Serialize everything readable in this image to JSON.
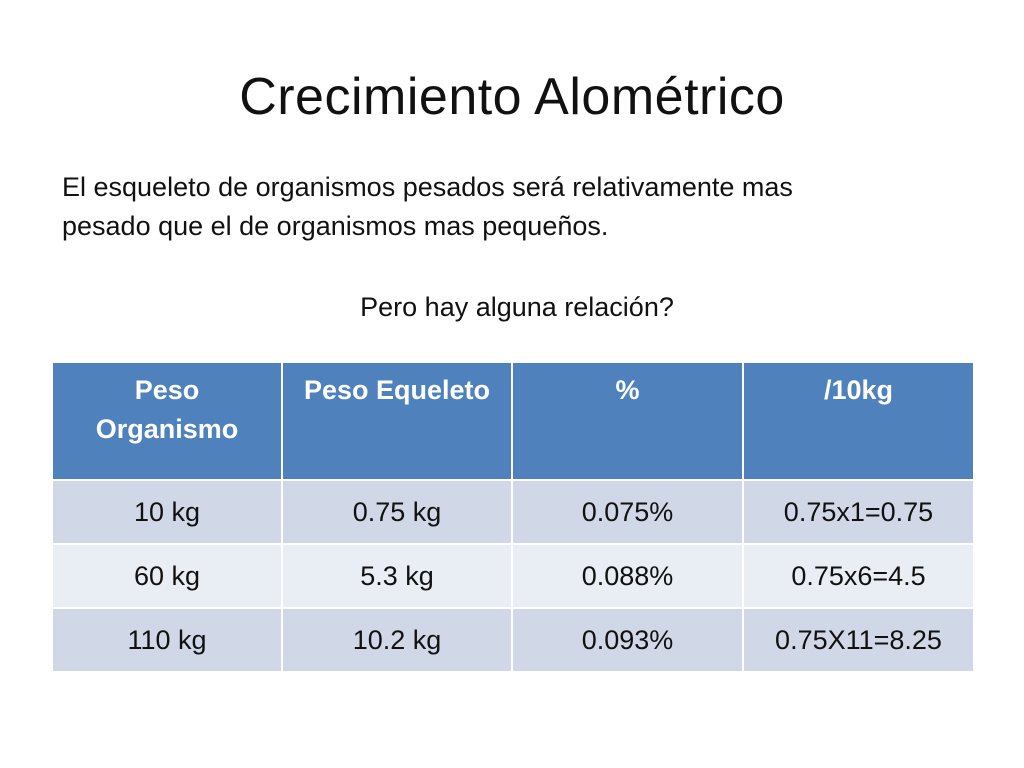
{
  "slide": {
    "title": "Crecimiento  Alométrico",
    "body_line1": "El esqueleto de organismos pesados será relativamente mas",
    "body_line2": "pesado que el de organismos mas pequeños.",
    "question": "Pero hay alguna relación?"
  },
  "table": {
    "header_color": "#4f81bd",
    "row_colors": [
      "#d0d8e8",
      "#e9edf4"
    ],
    "headers": [
      {
        "line1": "Peso",
        "line2": "Organismo"
      },
      {
        "line1": "Peso Equeleto",
        "line2": ""
      },
      {
        "line1": "%",
        "line2": ""
      },
      {
        "line1": "/10kg",
        "line2": ""
      }
    ],
    "rows": [
      [
        "10 kg",
        "0.75 kg",
        "0.075%",
        "0.75x1=0.75"
      ],
      [
        "60 kg",
        "5.3 kg",
        "0.088%",
        "0.75x6=4.5"
      ],
      [
        "110 kg",
        "10.2 kg",
        "0.093%",
        "0.75X11=8.25"
      ]
    ]
  }
}
